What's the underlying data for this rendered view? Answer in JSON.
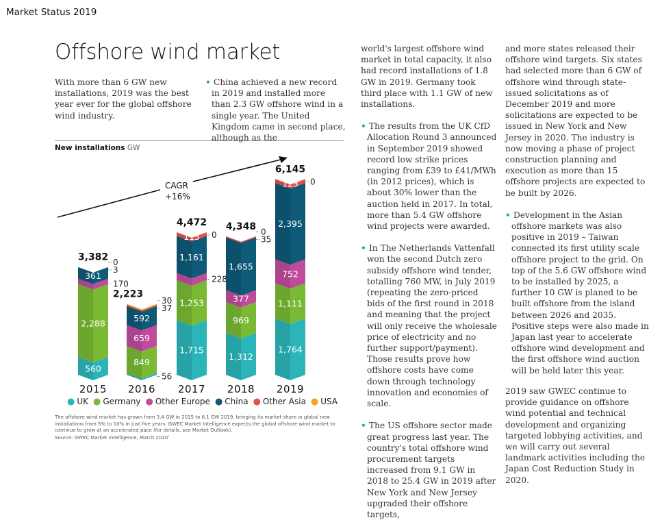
{
  "header": {
    "section": "Market Status 2019",
    "title": "Offshore wind market"
  },
  "intro": "With more than 6 GW new installations, 2019 was the best year ever for the global offshore wind industry.",
  "bullet_color": "#2aa7a5",
  "columns": {
    "col2": [
      "China achieved a new record in 2019 and installed more than 2.3 GW offshore wind in a single year. The United Kingdom came in second place, although as the"
    ],
    "col3": [
      {
        "bullet": false,
        "text": "world's largest offshore wind market in total capacity, it also had record installations of 1.8 GW in 2019. Germany took third place with 1.1 GW of new installations."
      },
      {
        "bullet": true,
        "text": "The results from the UK CfD Allocation Round 3 announced in September 2019 showed record low strike prices ranging from £39 to £41/MWh (in 2012 prices), which is about 30% lower than the auction held in 2017. In total, more than 5.4 GW offshore wind projects were awarded."
      },
      {
        "bullet": true,
        "text": "In The Netherlands Vattenfall won the second Dutch zero subsidy offshore wind tender, totalling 760 MW, in July 2019 (repeating the zero-priced bids of the first round in 2018 and meaning that the project will only receive the wholesale price of electricity and no further support/payment). Those results prove how offshore costs have come down through technology innovation and economies of scale."
      },
      {
        "bullet": true,
        "text": "The US offshore sector made great progress last year. The country's total offshore wind procurement targets increased from 9.1 GW in 2018 to 25.4 GW in 2019 after New York and New Jersey upgraded their offshore targets,"
      }
    ],
    "col4": [
      {
        "bullet": false,
        "text": "and more states released their offshore wind targets. Six states had selected more than 6 GW of offshore wind through state-issued solicitations as of December 2019 and more solicitations are expected to be issued in New York and New Jersey in 2020. The industry is now moving a phase of project construction planning and execution as more than 15 offshore projects are expected to be built by 2026."
      },
      {
        "bullet": true,
        "text": "Development in the Asian offshore markets was also positive in 2019 – Taiwan connected its first utility scale offshore project to the grid. On top of the 5.6 GW offshore wind to be installed by 2025, a further 10 GW is planed to be built offshore from the island between 2026 and 2035. Positive steps were also made in Japan last year to accelerate offshore wind development and the first offshore wind auction will be held later this year."
      },
      {
        "bullet": false,
        "text": "2019 saw GWEC continue to provide guidance on offshore wind potential and technical development and organizing targeted lobbying activities, and we will carry out several landmark activities including the Japan Cost Reduction Study in 2020."
      }
    ]
  },
  "chart_data": {
    "type": "bar",
    "stacked": true,
    "title": "New installations",
    "unit": "GW",
    "categories": [
      "2015",
      "2016",
      "2017",
      "2018",
      "2019"
    ],
    "series": [
      {
        "name": "UK",
        "color": "#2cb5b9",
        "values": [
          560,
          56,
          1715,
          1312,
          1764
        ]
      },
      {
        "name": "Germany",
        "color": "#7ab934",
        "values": [
          2288,
          849,
          1253,
          969,
          1111
        ]
      },
      {
        "name": "Other Europe",
        "color": "#c04b9d",
        "values": [
          170,
          659,
          228,
          377,
          752
        ]
      },
      {
        "name": "China",
        "color": "#0f5a78",
        "values": [
          361,
          592,
          1161,
          1655,
          2395
        ]
      },
      {
        "name": "Other Asia",
        "color": "#e2514a",
        "values": [
          3,
          37,
          115,
          35,
          123
        ]
      },
      {
        "name": "USA",
        "color": "#f0a818",
        "values": [
          0,
          30,
          0,
          0,
          0
        ]
      }
    ],
    "totals": [
      "3,382",
      "2,223",
      "4,472",
      "4,348",
      "6,145"
    ],
    "annotation": {
      "line1": "CAGR",
      "line2": "+16%"
    },
    "legend_position": "bottom",
    "grid": false
  },
  "caption": "The offshore wind market has grown from 3.4 GW in 2015 to 6.1 GW 2019, bringing its market share in global new installations from 5% to 10% in just five years. GWEC Market Intelligence expects the global offshore wind market to continue to grow at an accelerated pace (for details, see Market Outlook).",
  "source": "Source: GWEC Market Intelligence, March 2020'"
}
